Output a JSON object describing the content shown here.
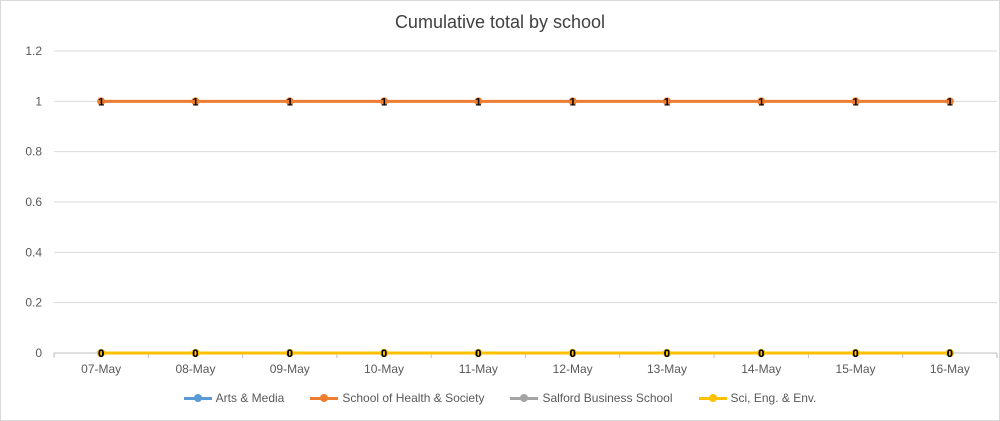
{
  "chart_data": {
    "type": "line",
    "title": "Cumulative total by school",
    "xlabel": "",
    "ylabel": "",
    "categories": [
      "07-May",
      "08-May",
      "09-May",
      "10-May",
      "11-May",
      "12-May",
      "13-May",
      "14-May",
      "15-May",
      "16-May"
    ],
    "ylim": [
      0,
      1.2
    ],
    "yticks": [
      "0",
      "0.2",
      "0.4",
      "0.6",
      "0.8",
      "1",
      "1.2"
    ],
    "grid": true,
    "legend_position": "bottom",
    "data_labels": true,
    "series": [
      {
        "name": "Arts & Media",
        "color": "#5b9bd5",
        "values": [
          0,
          0,
          0,
          0,
          0,
          0,
          0,
          0,
          0,
          0
        ]
      },
      {
        "name": "School of Health & Society",
        "color": "#ed7d31",
        "values": [
          1,
          1,
          1,
          1,
          1,
          1,
          1,
          1,
          1,
          1
        ]
      },
      {
        "name": "Salford Business School",
        "color": "#a5a5a5",
        "values": [
          0,
          0,
          0,
          0,
          0,
          0,
          0,
          0,
          0,
          0
        ]
      },
      {
        "name": "Sci, Eng. & Env.",
        "color": "#ffc000",
        "values": [
          0,
          0,
          0,
          0,
          0,
          0,
          0,
          0,
          0,
          0
        ]
      }
    ]
  }
}
